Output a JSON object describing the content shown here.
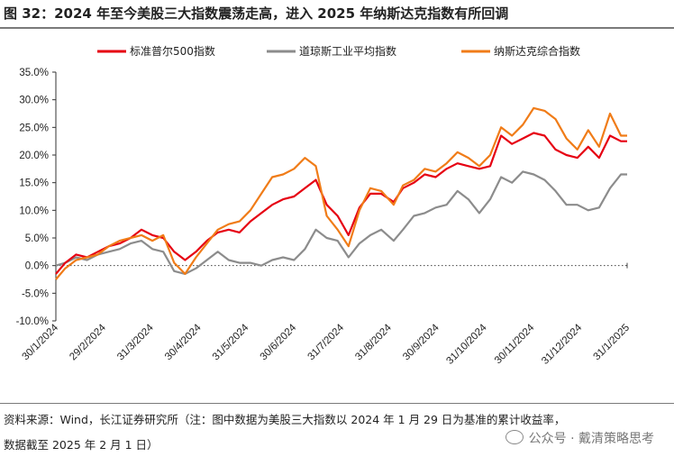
{
  "header": {
    "title": "图 32：2024 年至今美股三大指数震荡走高，进入 2025 年纳斯达克指数有所回调"
  },
  "footer": {
    "source_line1": "资料来源：Wind，长江证券研究所（注：图中数据为美股三大指数以 2024 年 1 月 29 日为基准的累计收益率，",
    "source_line2": "数据截至 2025 年 2 月 1 日）",
    "watermark": "公众号 · 戴清策略思考"
  },
  "colors": {
    "sp500": "#e60012",
    "dow": "#8c8c8c",
    "nasdaq": "#f07c18"
  },
  "chart_data": {
    "type": "line",
    "title": "",
    "xlabel": "",
    "ylabel": "",
    "ylim": [
      -10,
      35
    ],
    "y_ticks": [
      "-10.0%",
      "-5.0%",
      "0.0%",
      "5.0%",
      "10.0%",
      "15.0%",
      "20.0%",
      "25.0%",
      "30.0%",
      "35.0%"
    ],
    "x_tick_labels": [
      "30/1/2024",
      "29/2/2024",
      "31/3/2024",
      "30/4/2024",
      "31/5/2024",
      "30/6/2024",
      "31/7/2024",
      "31/8/2024",
      "30/9/2024",
      "31/10/2024",
      "30/11/2024",
      "31/12/2024",
      "31/1/2025"
    ],
    "legend_position": "top",
    "grid": false,
    "x": [
      "1/30/2024",
      "2/5/2024",
      "2/12/2024",
      "2/19/2024",
      "2/26/2024",
      "3/4/2024",
      "3/11/2024",
      "3/18/2024",
      "3/25/2024",
      "4/1/2024",
      "4/8/2024",
      "4/15/2024",
      "4/22/2024",
      "4/29/2024",
      "5/6/2024",
      "5/13/2024",
      "5/20/2024",
      "5/27/2024",
      "6/3/2024",
      "6/10/2024",
      "6/17/2024",
      "6/24/2024",
      "7/1/2024",
      "7/8/2024",
      "7/15/2024",
      "7/22/2024",
      "7/29/2024",
      "8/5/2024",
      "8/12/2024",
      "8/19/2024",
      "8/26/2024",
      "9/3/2024",
      "9/9/2024",
      "9/16/2024",
      "9/23/2024",
      "9/30/2024",
      "10/7/2024",
      "10/14/2024",
      "10/21/2024",
      "10/28/2024",
      "11/4/2024",
      "11/11/2024",
      "11/18/2024",
      "11/25/2024",
      "12/2/2024",
      "12/9/2024",
      "12/16/2024",
      "12/23/2024",
      "12/30/2024",
      "1/6/2025",
      "1/13/2025",
      "1/20/2025",
      "1/27/2025",
      "1/31/2025"
    ],
    "series": [
      {
        "name": "标准普尔500指数",
        "values": [
          -1.5,
          0.5,
          2.0,
          1.5,
          2.5,
          3.5,
          4.0,
          5.0,
          6.5,
          5.5,
          5.0,
          2.5,
          1.0,
          2.5,
          4.5,
          6.0,
          6.5,
          6.0,
          8.0,
          9.5,
          11.0,
          12.0,
          12.5,
          14.0,
          15.5,
          11.0,
          9.0,
          5.5,
          10.5,
          13.0,
          13.0,
          11.5,
          14.0,
          15.0,
          16.5,
          16.0,
          17.5,
          18.5,
          18.0,
          17.5,
          18.0,
          23.5,
          22.0,
          23.0,
          24.0,
          23.5,
          21.0,
          20.0,
          19.5,
          21.5,
          19.5,
          23.5,
          22.5,
          22.5
        ]
      },
      {
        "name": "道琼斯工业平均指数",
        "values": [
          0.0,
          0.5,
          1.5,
          1.0,
          2.0,
          2.5,
          3.0,
          4.0,
          4.5,
          3.0,
          2.5,
          -1.0,
          -1.5,
          -0.5,
          1.0,
          2.5,
          1.0,
          0.5,
          0.5,
          0.0,
          1.0,
          1.5,
          1.0,
          3.0,
          6.5,
          5.0,
          4.5,
          1.5,
          4.0,
          5.5,
          6.5,
          4.5,
          6.5,
          9.0,
          9.5,
          10.5,
          11.0,
          13.5,
          12.0,
          9.5,
          12.0,
          16.0,
          15.0,
          17.0,
          16.5,
          15.5,
          13.5,
          11.0,
          11.0,
          10.0,
          10.5,
          14.0,
          16.5,
          16.5
        ]
      },
      {
        "name": "纳斯达克综合指数",
        "values": [
          -2.5,
          -0.5,
          1.0,
          1.5,
          2.0,
          3.5,
          4.5,
          5.0,
          5.5,
          4.5,
          5.5,
          0.5,
          -1.5,
          1.5,
          4.0,
          6.5,
          7.5,
          8.0,
          10.0,
          13.0,
          16.0,
          16.5,
          17.5,
          19.5,
          18.0,
          9.0,
          6.5,
          3.5,
          10.0,
          14.0,
          13.5,
          11.0,
          14.5,
          15.5,
          17.5,
          17.0,
          18.5,
          20.5,
          19.5,
          18.0,
          20.0,
          25.0,
          23.5,
          25.5,
          28.5,
          28.0,
          26.5,
          23.0,
          21.0,
          24.5,
          21.5,
          27.5,
          23.5,
          23.5
        ]
      }
    ]
  }
}
